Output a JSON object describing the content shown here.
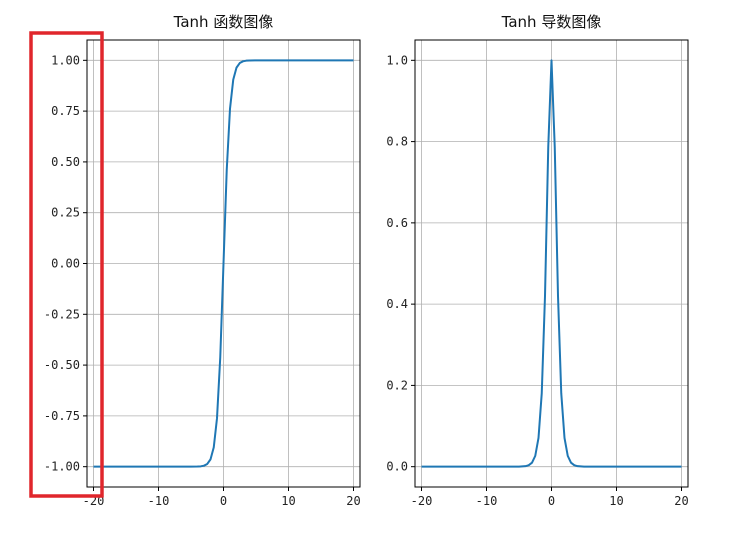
{
  "chart_data": [
    {
      "type": "line",
      "title": "Tanh 函数图像",
      "xlabel": "",
      "ylabel": "",
      "xlim": [
        -21,
        21
      ],
      "ylim": [
        -1.1,
        1.1
      ],
      "x_ticks": [
        -20,
        -10,
        0,
        10,
        20
      ],
      "x_tick_labels": [
        "-20",
        "-10",
        "0",
        "10",
        "20"
      ],
      "y_ticks": [
        -1.0,
        -0.75,
        -0.5,
        -0.25,
        0.0,
        0.25,
        0.5,
        0.75,
        1.0
      ],
      "y_tick_labels": [
        "-1.00",
        "-0.75",
        "-0.50",
        "-0.25",
        "0.00",
        "0.25",
        "0.50",
        "0.75",
        "1.00"
      ],
      "grid": true,
      "series": [
        {
          "color": "#1f77b4",
          "x": [
            -20,
            -10,
            -5,
            -4,
            -3.5,
            -3,
            -2.5,
            -2,
            -1.5,
            -1,
            -0.5,
            0,
            0.5,
            1,
            1.5,
            2,
            2.5,
            3,
            3.5,
            4,
            5,
            10,
            20
          ],
          "y": [
            -1.0,
            -1.0,
            -0.9999,
            -0.9993,
            -0.9982,
            -0.9951,
            -0.9866,
            -0.964,
            -0.9051,
            -0.7616,
            -0.4621,
            0.0,
            0.4621,
            0.7616,
            0.9051,
            0.964,
            0.9866,
            0.9951,
            0.9982,
            0.9993,
            0.9999,
            1.0,
            1.0
          ]
        }
      ]
    },
    {
      "type": "line",
      "title": "Tanh 导数图像",
      "xlabel": "",
      "ylabel": "",
      "xlim": [
        -21,
        21
      ],
      "ylim": [
        -0.05,
        1.05
      ],
      "x_ticks": [
        -20,
        -10,
        0,
        10,
        20
      ],
      "x_tick_labels": [
        "-20",
        "-10",
        "0",
        "10",
        "20"
      ],
      "y_ticks": [
        0.0,
        0.2,
        0.4,
        0.6,
        0.8,
        1.0
      ],
      "y_tick_labels": [
        "0.0",
        "0.2",
        "0.4",
        "0.6",
        "0.8",
        "1.0"
      ],
      "grid": true,
      "series": [
        {
          "color": "#1f77b4",
          "x": [
            -20,
            -10,
            -5,
            -4,
            -3.5,
            -3,
            -2.5,
            -2,
            -1.5,
            -1,
            -0.5,
            0,
            0.5,
            1,
            1.5,
            2,
            2.5,
            3,
            3.5,
            4,
            5,
            10,
            20
          ],
          "y": [
            0.0,
            0.0,
            0.0002,
            0.0013,
            0.0036,
            0.0099,
            0.0266,
            0.0707,
            0.1807,
            0.42,
            0.7864,
            1.0,
            0.7864,
            0.42,
            0.1807,
            0.0707,
            0.0266,
            0.0099,
            0.0036,
            0.0013,
            0.0002,
            0.0,
            0.0
          ]
        }
      ]
    }
  ],
  "annotation": {
    "type": "highlight-box",
    "color": "#e0262c",
    "target": "y-axis tick labels of the left plot"
  }
}
